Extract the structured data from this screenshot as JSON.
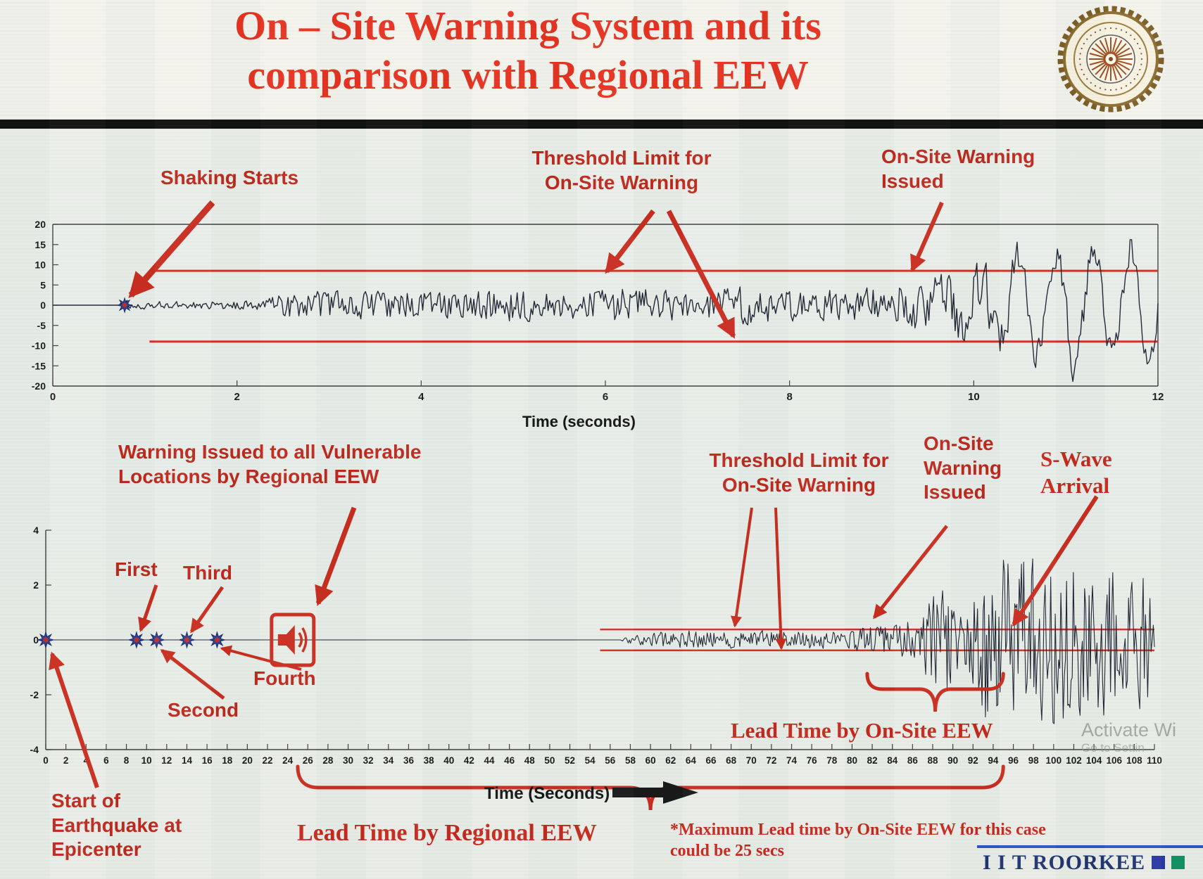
{
  "slide": {
    "title_line1": "On – Site Warning System and its",
    "title_line2": "comparison with Regional EEW",
    "colors": {
      "title_red": "#e62d1c",
      "annotation_red": "#bd2418",
      "arrow_red": "#c8281a",
      "threshold_red": "#d22c1e",
      "waveform": "#1a2230",
      "marker_blue": "#2b3f9e",
      "marker_center_red": "#c22a1c",
      "brand_navy": "#1b2f6e"
    }
  },
  "footer": {
    "brand": "I I T ROORKEE",
    "watermark_line1": "Activate Wi",
    "watermark_line2": "Go to Settin"
  },
  "chart_data": [
    {
      "type": "line",
      "xlabel": "Time (seconds)",
      "xlim": [
        0,
        12
      ],
      "xticks": [
        0,
        2,
        4,
        6,
        8,
        10,
        12
      ],
      "ylim": [
        -20,
        20
      ],
      "yticks": [
        20,
        15,
        10,
        5,
        0,
        -5,
        -10,
        -15,
        -20
      ],
      "threshold_upper": 8.5,
      "threshold_lower": -9,
      "threshold_start_t": 1.05,
      "shaking_starts_t": 0.78,
      "onsite_warning_issued_t": 9.3,
      "envelope": [
        [
          0,
          0
        ],
        [
          0.72,
          0
        ],
        [
          0.78,
          1.8
        ],
        [
          1.0,
          0.9
        ],
        [
          2.3,
          1.1
        ],
        [
          2.6,
          4.2
        ],
        [
          3.0,
          3.2
        ],
        [
          3.6,
          4.0
        ],
        [
          4.4,
          3.0
        ],
        [
          5.0,
          4.2
        ],
        [
          5.6,
          3.2
        ],
        [
          6.2,
          4.4
        ],
        [
          7.0,
          3.4
        ],
        [
          7.6,
          4.6
        ],
        [
          8.2,
          3.4
        ],
        [
          8.8,
          4.2
        ],
        [
          9.2,
          5.5
        ],
        [
          9.6,
          8
        ],
        [
          10.0,
          11
        ],
        [
          10.4,
          15
        ],
        [
          10.8,
          12
        ],
        [
          11.1,
          17
        ],
        [
          11.5,
          13
        ],
        [
          11.8,
          16
        ],
        [
          12,
          14
        ]
      ],
      "seed": 7,
      "slow_freq": 2.6,
      "low_blend": [
        9.2,
        10.6
      ],
      "annotations": {
        "shaking_starts": "Shaking Starts",
        "threshold_limit": "Threshold Limit for\nOn-Site Warning",
        "warning_issued": "On-Site Warning\nIssued"
      }
    },
    {
      "type": "line",
      "xlabel": "Time (Seconds)",
      "xlim": [
        0,
        110
      ],
      "xticks": [
        0,
        2,
        4,
        6,
        8,
        10,
        12,
        14,
        16,
        18,
        20,
        22,
        24,
        26,
        28,
        30,
        32,
        34,
        36,
        38,
        40,
        42,
        44,
        46,
        48,
        50,
        52,
        54,
        56,
        58,
        60,
        62,
        64,
        66,
        68,
        70,
        72,
        74,
        76,
        78,
        80,
        82,
        84,
        86,
        88,
        90,
        92,
        94,
        96,
        98,
        100,
        102,
        104,
        106,
        108,
        110
      ],
      "ylim": [
        -4,
        4
      ],
      "yticks": [
        4,
        2,
        0,
        -2,
        -4
      ],
      "threshold_upper": 0.38,
      "threshold_lower": -0.38,
      "threshold_start_t": 55,
      "p_wave_detections": [
        {
          "label": "Start of Earthquake at Epicenter",
          "t": 0
        },
        {
          "label": "First",
          "t": 9
        },
        {
          "label": "Second",
          "t": 11
        },
        {
          "label": "Third",
          "t": 14
        },
        {
          "label": "Fourth",
          "t": 17
        }
      ],
      "regional_warning_issued_t": 24.5,
      "onsite_warning_issued_t": 82,
      "s_wave_arrival_t": 93,
      "lead_time_regional_s": [
        25,
        95
      ],
      "lead_time_onsite_s": [
        81.5,
        95
      ],
      "max_onsite_lead_secs": 25,
      "envelope": [
        [
          0,
          0
        ],
        [
          57,
          0
        ],
        [
          58,
          0.16
        ],
        [
          61,
          0.3
        ],
        [
          64,
          0.34
        ],
        [
          67,
          0.28
        ],
        [
          70,
          0.34
        ],
        [
          73,
          0.3
        ],
        [
          76,
          0.32
        ],
        [
          79,
          0.38
        ],
        [
          81,
          0.5
        ],
        [
          84,
          0.55
        ],
        [
          86,
          0.8
        ],
        [
          88,
          1.6
        ],
        [
          89,
          2.4
        ],
        [
          90,
          1.4
        ],
        [
          91,
          1.1
        ],
        [
          92,
          1.6
        ],
        [
          93,
          3.4
        ],
        [
          94,
          2.6
        ],
        [
          95,
          3.5
        ],
        [
          96,
          2.8
        ],
        [
          97,
          3.4
        ],
        [
          99,
          2.8
        ],
        [
          101,
          3.3
        ],
        [
          103,
          2.4
        ],
        [
          105,
          2.9
        ],
        [
          107,
          2.1
        ],
        [
          109,
          2.5
        ],
        [
          110,
          1.9
        ]
      ],
      "seed": 3,
      "annotations": {
        "warning_regional": "Warning Issued to all Vulnerable\nLocations by Regional EEW",
        "first": "First",
        "third": "Third",
        "second": "Second",
        "fourth": "Fourth",
        "threshold_limit": "Threshold Limit for\nOn-Site Warning",
        "onsite_warning": "On-Site\nWarning\nIssued",
        "s_wave": "S-Wave\nArrival",
        "lead_onsite": "Lead Time by On-Site EEW",
        "lead_regional": "Lead Time by Regional EEW",
        "start_epicenter": "Start of\nEarthquake at\nEpicenter",
        "max_lead_note": "*Maximum Lead time by On-Site EEW for this case\ncould be 25 secs"
      }
    }
  ]
}
